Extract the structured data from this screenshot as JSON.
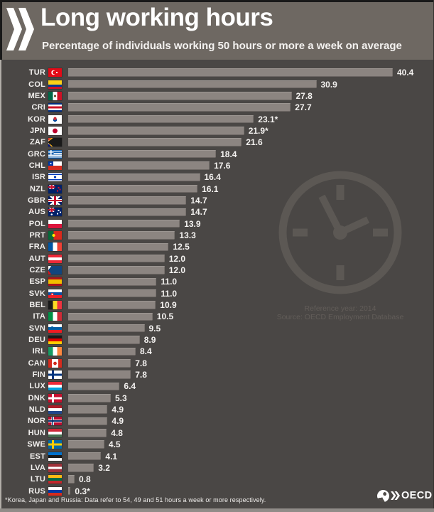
{
  "header": {
    "title": "Long working hours",
    "subtitle": "Percentage of individuals working 50 hours or more a week on average"
  },
  "chart_data": {
    "type": "bar",
    "orientation": "horizontal",
    "title": "Long working hours",
    "subtitle": "Percentage of individuals working 50 hours or more a week on average",
    "unit": "%",
    "xlim": [
      0,
      42
    ],
    "grid": false,
    "legend": "none",
    "categories": [
      "TUR",
      "COL",
      "MEX",
      "CRI",
      "KOR",
      "JPN",
      "ZAF",
      "GRC",
      "CHL",
      "ISR",
      "NZL",
      "GBR",
      "AUS",
      "POL",
      "PRT",
      "FRA",
      "AUT",
      "CZE",
      "ESP",
      "SVK",
      "BEL",
      "ITA",
      "SVN",
      "DEU",
      "IRL",
      "CAN",
      "FIN",
      "LUX",
      "DNK",
      "NLD",
      "NOR",
      "HUN",
      "SWE",
      "EST",
      "LVA",
      "LTU",
      "RUS"
    ],
    "values": [
      40.4,
      30.9,
      27.8,
      27.7,
      23.1,
      21.9,
      21.6,
      18.4,
      17.6,
      16.4,
      16.1,
      14.7,
      14.7,
      13.9,
      13.3,
      12.5,
      12.0,
      12.0,
      11.0,
      11.0,
      10.9,
      10.5,
      9.5,
      8.9,
      8.4,
      7.8,
      7.8,
      6.4,
      5.3,
      4.9,
      4.9,
      4.8,
      4.5,
      4.1,
      3.2,
      0.8,
      0.3
    ],
    "value_labels": [
      "40.4",
      "30.9",
      "27.8",
      "27.7",
      "23.1*",
      "21.9*",
      "21.6",
      "18.4",
      "17.6",
      "16.4",
      "16.1",
      "14.7",
      "14.7",
      "13.9",
      "13.3",
      "12.5",
      "12.0",
      "12.0",
      "11.0",
      "11.0",
      "10.9",
      "10.5",
      "9.5",
      "8.9",
      "8.4",
      "7.8",
      "7.8",
      "6.4",
      "5.3",
      "4.9",
      "4.9",
      "4.8",
      "4.5",
      "4.1",
      "3.2",
      "0.8",
      "0.3*"
    ],
    "annotations": [
      "Reference year: 2014",
      "Source: OECD Employment Database"
    ]
  },
  "clock_note": {
    "line1": "Reference year: 2014",
    "line2": "Source: OECD Employment Database"
  },
  "footnote": "*Korea, Japan and Russia: Data refer to 54, 49 and 51 hours a week or more respectively.",
  "logo": {
    "text": "OECD"
  },
  "colors": {
    "header_bg": "#6e6862",
    "chart_bg": "#4a4745",
    "bar": "#8c8581",
    "label_text": "#f2f0ee",
    "clock": "#5c5854",
    "note_text": "#625d59",
    "bottom_strip": "#908c88"
  },
  "flags": {
    "TUR": "radial-gradient(circle at 12px 6px, #fff 0 1.1px, transparent 1.2px), radial-gradient(circle at 8.8px 6px, #e30a17 0 2.6px, transparent 2.7px), radial-gradient(circle at 7.5px 6px, #fff 0 3.2px, transparent 3.3px), #e30a17",
    "COL": "linear-gradient(180deg, #fcd116 0 50%, #003893 50% 75%, #ce1126 75%)",
    "MEX": "radial-gradient(circle at 50% 50%, #6b4e2e 0 1.6px, transparent 1.7px), linear-gradient(90deg, #006847 0 33.3%, #fff 33.3% 66.6%, #ce1126 66.6%)",
    "CRI": "linear-gradient(180deg, #002b7f 0 18%, #fff 18% 38%, #ce1126 38% 62%, #fff 62% 82%, #002b7f 82%)",
    "KOR": "radial-gradient(circle at 9.5px 4.8px, #cd2e3a 0 2.2px, transparent 2.3px), radial-gradient(circle at 9.5px 6.6px, #0047a0 0 2.6px, transparent 2.7px), #fff",
    "JPN": "radial-gradient(circle at 50% 50%, #bc002d 0 3.3px, transparent 3.4px), #fff",
    "ZAF": "conic-gradient(from 52deg at -1px 6px, #1a1a1a 0 76deg, transparent 76deg), conic-gradient(from 40deg at -1px 6px, #ffb612 0 100deg, transparent 100deg), linear-gradient(180deg, #e03c31 0 31%, #fff 31% 38%, #007a4d 38% 62%, #fff 62% 69%, #001489 69%)",
    "GRC": "linear-gradient(#fff 0 0) 3px 0 / 1.6px 6.5px no-repeat, linear-gradient(#fff 0 0) 0 2.5px / 7.5px 1.6px no-repeat, linear-gradient(#0d5eaf 0 0) 0 0 / 7.5px 6.5px no-repeat, repeating-linear-gradient(180deg, #0d5eaf 0 1.3px, #fff 1.3px 2.65px)",
    "CHL": "radial-gradient(circle at 3.5px 3px, #fff 0 1px, transparent 1.1px), linear-gradient(#0039a6 0 0) 0 0 / 7px 6px no-repeat, linear-gradient(180deg, #fff 0 50%, #d52b1e 50%)",
    "ISR": "radial-gradient(circle at 50% 50%, #0038b8 0 1.7px, transparent 1.8px), linear-gradient(180deg, #fff 0 12%, #0038b8 12% 26%, #fff 26% 74%, #0038b8 74% 88%, #fff 88%)",
    "NZL": "radial-gradient(circle at 14.5px 4px, #cc142b 0 1.2px, transparent 1.3px), radial-gradient(circle at 13px 8.5px, #cc142b 0 1.2px, transparent 1.3px), radial-gradient(circle at 16.5px 6.5px, #cc142b 0 1.1px, transparent 1.2px), linear-gradient(180deg, transparent 0 36%, #c8102e 36% 64%, transparent 64%) 0 0 / 9.5px 6px no-repeat, linear-gradient(90deg, transparent 0 38%, #c8102e 38% 62%, transparent 62%) 0 0 / 9.5px 6px no-repeat, linear-gradient(45deg, transparent 0 43%, #fff 43% 57%, transparent 57%) 0 0 / 9.5px 6px no-repeat, linear-gradient(135deg, transparent 0 43%, #fff 43% 57%, transparent 57%) 0 0 / 9.5px 6px no-repeat, #012169",
    "GBR": "linear-gradient(180deg, transparent 0 40%, #c8102e 40% 60%, transparent 60%), linear-gradient(90deg, transparent 0 42%, #c8102e 42% 58%, transparent 58%), linear-gradient(180deg, transparent 0 32%, #fff 32% 68%, transparent 68%), linear-gradient(90deg, transparent 0 35%, #fff 35% 65%, transparent 65%), linear-gradient(45deg, transparent 0 45%, #fff 45% 55%, transparent 55%), linear-gradient(135deg, transparent 0 45%, #fff 45% 55%, transparent 55%), #012169",
    "AUS": "radial-gradient(circle at 14.5px 4px, #fff 0 1.1px, transparent 1.2px), radial-gradient(circle at 13px 8.5px, #fff 0 1.1px, transparent 1.2px), radial-gradient(circle at 17px 6.5px, #fff 0 1px, transparent 1.1px), radial-gradient(circle at 4.75px 9.5px, #fff 0 1.2px, transparent 1.3px), linear-gradient(180deg, transparent 0 36%, #c8102e 36% 64%, transparent 64%) 0 0 / 9.5px 6px no-repeat, linear-gradient(90deg, transparent 0 38%, #c8102e 38% 62%, transparent 62%) 0 0 / 9.5px 6px no-repeat, linear-gradient(45deg, transparent 0 43%, #fff 43% 57%, transparent 57%) 0 0 / 9.5px 6px no-repeat, linear-gradient(135deg, transparent 0 43%, #fff 43% 57%, transparent 57%) 0 0 / 9.5px 6px no-repeat, #012169",
    "POL": "linear-gradient(180deg, #fff 0 50%, #dc143c 50%)",
    "PRT": "radial-gradient(circle at 7.6px 6px, #ffe600 0 2px, transparent 2.1px), linear-gradient(90deg, #046a38 0 40%, #da291c 40%)",
    "FRA": "linear-gradient(90deg, #0055a4 0 33.3%, #fff 33.3% 66.6%, #ef4135 66.6%)",
    "AUT": "linear-gradient(180deg, #ed2939 0 33.3%, #fff 33.3% 66.6%, #ed2939 66.6%)",
    "CZE": "conic-gradient(from 35deg at 0px 6px, #11457e 0 110deg, transparent 110deg), linear-gradient(180deg, #fff 0 50%, #d7141a 50%)",
    "ESP": "linear-gradient(180deg, #aa151b 0 25%, #f1bf00 25% 75%, #aa151b 75%)",
    "SVK": "radial-gradient(circle at 5.5px 7px, #fff 0 0.9px, #ee1c25 0.9px 2px, transparent 2.1px), linear-gradient(180deg, #fff 0 33.3%, #0b4ea2 33.3% 66.6%, #ee1c25 66.6%)",
    "BEL": "linear-gradient(90deg, #1a1a1a 0 33.3%, #fdda24 33.3% 66.6%, #ef3340 66.6%)",
    "ITA": "linear-gradient(90deg, #009246 0 33.3%, #fff 33.3% 66.6%, #ce2b37 66.6%)",
    "SVN": "radial-gradient(circle at 5.5px 4.5px, #005da4 0 1.5px, transparent 1.6px), linear-gradient(180deg, #fff 0 33.3%, #005da4 33.3% 66.6%, #ed1c24 66.6%)",
    "DEU": "linear-gradient(180deg, #1a1a1a 0 33.3%, #dd0000 33.3% 66.6%, #ffce00 66.6%)",
    "IRL": "linear-gradient(90deg, #169b62 0 33.3%, #fff 33.3% 66.6%, #ff883e 66.6%)",
    "CAN": "radial-gradient(circle at 50% 50%, #d52b1e 0 2.3px, transparent 2.4px), linear-gradient(90deg, #d52b1e 0 26%, #fff 26% 74%, #d52b1e 74%)",
    "FIN": "linear-gradient(180deg, transparent 0 37%, #003580 37% 63%, transparent 63%), linear-gradient(90deg, transparent 0 26%, #003580 26% 42%, transparent 42%), #fff",
    "LUX": "linear-gradient(180deg, #ed2939 0 33.3%, #fff 33.3% 66.6%, #00a1de 66.6%)",
    "DNK": "linear-gradient(180deg, transparent 0 38%, #fff 38% 62%, transparent 62%), linear-gradient(90deg, transparent 0 26%, #fff 26% 42%, transparent 42%), #c8102e",
    "NLD": "linear-gradient(180deg, #ae1c28 0 33.3%, #fff 33.3% 66.6%, #21468b 66.6%)",
    "NOR": "linear-gradient(180deg, transparent 0 42%, #002868 42% 58%, transparent 58%), linear-gradient(90deg, transparent 0 30%, #002868 30% 38%, transparent 38%), linear-gradient(180deg, transparent 0 34%, #fff 34% 66%, transparent 66%), linear-gradient(90deg, transparent 0 25%, #fff 25% 43%, transparent 43%), #ba0c2f",
    "HUN": "linear-gradient(180deg, #ce2939 0 33.3%, #fff 33.3% 66.6%, #477050 66.6%)",
    "SWE": "linear-gradient(180deg, transparent 0 38%, #fecc00 38% 62%, transparent 62%), linear-gradient(90deg, transparent 0 26%, #fecc00 26% 42%, transparent 42%), #006aa7",
    "EST": "linear-gradient(180deg, #0072ce 0 33.3%, #1a1a1a 33.3% 66.6%, #fff 66.6%)",
    "LVA": "linear-gradient(180deg, #9e3039 0 38%, #fff 38% 62%, #9e3039 62%)",
    "LTU": "linear-gradient(180deg, #fdb913 0 33.3%, #006a44 33.3% 66.6%, #c1272d 66.6%)",
    "RUS": "linear-gradient(180deg, #fff 0 33.3%, #0039a6 33.3% 66.6%, #d52b1e 66.6%)"
  }
}
